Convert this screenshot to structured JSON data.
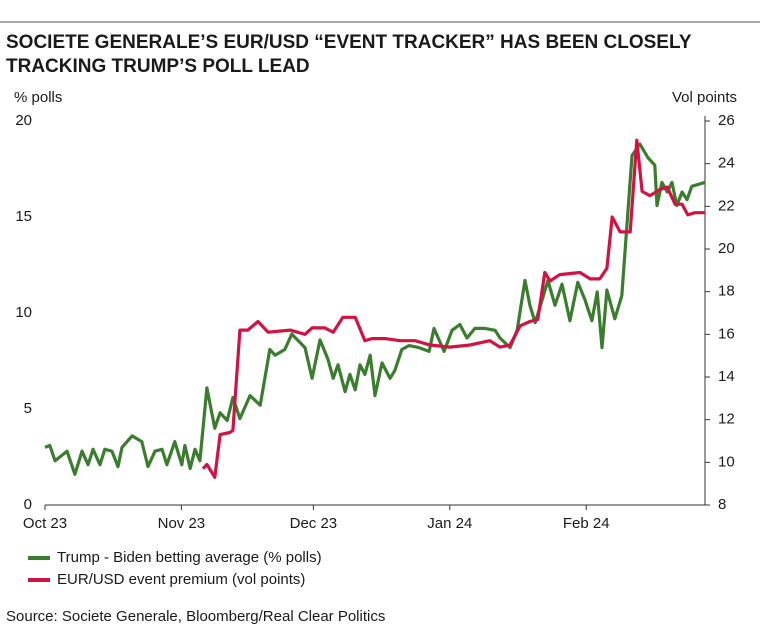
{
  "chart_data": {
    "type": "line",
    "title": [
      "SOCIETE GENERALE’S EUR/USD  “EVENT TRACKER” HAS BEEN CLOSELY",
      "TRACKING TRUMP’S POLL LEAD"
    ],
    "y_label": "% polls",
    "y2_label": "Vol points",
    "source": "Source: Societe Generale, Bloomberg/Real Clear Politics",
    "xlim": [
      0,
      150
    ],
    "xticks": [
      {
        "value": 0,
        "label": "Oct 23"
      },
      {
        "value": 31,
        "label": "Nov 23"
      },
      {
        "value": 61,
        "label": "Dec 23"
      },
      {
        "value": 92,
        "label": "Jan 24"
      },
      {
        "value": 123,
        "label": "Feb 24"
      }
    ],
    "ylim": [
      0,
      20
    ],
    "yticks": [
      0,
      5,
      10,
      15,
      20
    ],
    "y2lim": [
      8,
      26
    ],
    "y2ticks": [
      8,
      10,
      12,
      14,
      16,
      18,
      20,
      22,
      24,
      26
    ],
    "series": [
      {
        "name": "Trump - Biden betting average (% polls)",
        "color": "#3b7d2e",
        "x": [
          0,
          1.1,
          2.3,
          5,
          6.8,
          8.4,
          9.8,
          10.9,
          12.5,
          13.6,
          15.2,
          16.6,
          17.5,
          19.8,
          22,
          23.4,
          25,
          26.6,
          27.7,
          29.5,
          31.1,
          31.8,
          33,
          34.1,
          35.2,
          36.8,
          38.6,
          39.8,
          41.4,
          42.7,
          44.3,
          46.6,
          48.9,
          51.1,
          52.3,
          54.5,
          56.1,
          59.1,
          60.7,
          62.5,
          64.3,
          65.5,
          66.6,
          68.2,
          69.3,
          70.5,
          71.6,
          72.7,
          73.9,
          75,
          76.6,
          78.4,
          79.5,
          81.1,
          82.7,
          85,
          87.3,
          88.4,
          90.7,
          92.5,
          94.3,
          95.9,
          97.7,
          100,
          102.3,
          103.4,
          105.7,
          107.3,
          109.1,
          110.2,
          111.4,
          113,
          114.3,
          115.9,
          117.5,
          119.3,
          121.1,
          122.7,
          124.3,
          125.5,
          126.6,
          127.7,
          129.5,
          131.1,
          133.4,
          135.2,
          137,
          138.6,
          139.1,
          140.2,
          141.4,
          142.5,
          143.6,
          144.8,
          145.9,
          147,
          150
        ],
        "values": [
          3.0,
          3.1,
          2.3,
          2.8,
          1.6,
          2.8,
          2.1,
          2.9,
          2.1,
          2.9,
          2.8,
          2.0,
          3.0,
          3.6,
          3.3,
          2.0,
          2.8,
          2.9,
          2.1,
          3.3,
          2.1,
          3.1,
          1.9,
          2.9,
          2.3,
          6.1,
          4.0,
          4.8,
          4.4,
          5.6,
          4.5,
          5.7,
          5.2,
          8.1,
          7.8,
          8.1,
          8.9,
          8.2,
          6.6,
          8.6,
          7.6,
          6.6,
          7.3,
          5.9,
          6.8,
          6.0,
          7.3,
          6.8,
          7.8,
          5.7,
          7.4,
          6.6,
          7.0,
          8.1,
          8.3,
          8.2,
          8.0,
          9.2,
          8.0,
          9.1,
          9.4,
          8.7,
          9.2,
          9.2,
          9.1,
          8.7,
          8.2,
          9.1,
          11.7,
          10.4,
          9.5,
          10.7,
          11.7,
          10.4,
          11.5,
          9.6,
          11.6,
          10.7,
          9.6,
          11.1,
          8.2,
          11.2,
          9.7,
          10.9,
          18.2,
          18.8,
          18.1,
          17.7,
          15.6,
          16.8,
          16.3,
          16.8,
          15.6,
          16.3,
          15.9,
          16.6,
          16.8
        ]
      },
      {
        "name": "EUR/USD event premium (vol points)",
        "color": "#d21242",
        "axis": "y2",
        "x": [
          35.9,
          36.8,
          38.6,
          39.8,
          42,
          42.7,
          44.3,
          46.1,
          48.4,
          50.7,
          55.7,
          59.1,
          60.7,
          63.6,
          65.5,
          67.7,
          70.5,
          72.7,
          74.3,
          77.3,
          80.7,
          84.1,
          87.5,
          92,
          96.6,
          101.1,
          103.4,
          105.7,
          108,
          110.2,
          112,
          113.6,
          114.8,
          117,
          121.6,
          123.9,
          126.1,
          127.7,
          128.9,
          130.7,
          133,
          134.5,
          135.7,
          137.5,
          139.8,
          141.4,
          143.2,
          144.8,
          146.1,
          147.7,
          150
        ],
        "values": [
          9.7,
          9.9,
          9.3,
          11.3,
          11.4,
          11.5,
          16.2,
          16.2,
          16.6,
          16.1,
          16.2,
          16.0,
          16.3,
          16.3,
          16.1,
          16.8,
          16.8,
          15.7,
          15.8,
          15.8,
          15.7,
          15.7,
          15.5,
          15.4,
          15.5,
          15.7,
          15.4,
          15.5,
          16.4,
          16.6,
          16.7,
          18.9,
          18.5,
          18.8,
          18.9,
          18.6,
          18.6,
          19.1,
          21.5,
          20.8,
          20.8,
          25.1,
          22.7,
          22.5,
          22.8,
          22.9,
          22.1,
          22.1,
          21.6,
          21.7,
          21.7
        ]
      }
    ]
  }
}
